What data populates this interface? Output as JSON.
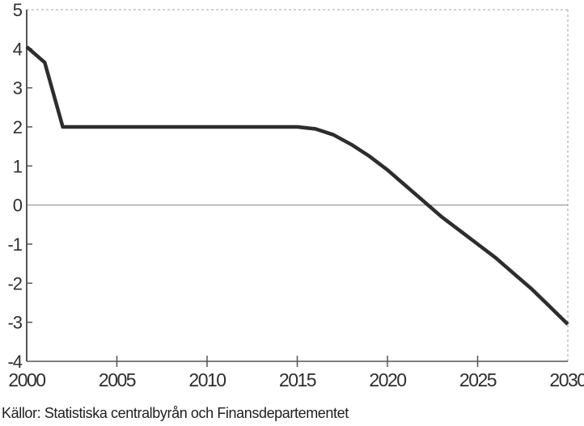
{
  "caption": "Källor: Statistiska centralbyrån och Finansdepartementet",
  "colors": {
    "background": "#ffffff",
    "line": "#2d2d2d",
    "axis": "#555555",
    "zero_line": "#909090",
    "border_dotted": "#b5b5b5",
    "text": "#2e2e2e"
  },
  "chart_data": {
    "type": "line",
    "title": "",
    "xlabel": "",
    "ylabel": "",
    "x": [
      2000,
      2001,
      2002,
      2003,
      2004,
      2005,
      2006,
      2007,
      2008,
      2009,
      2010,
      2011,
      2012,
      2013,
      2014,
      2015,
      2016,
      2017,
      2018,
      2019,
      2020,
      2021,
      2022,
      2023,
      2024,
      2025,
      2026,
      2027,
      2028,
      2029,
      2030
    ],
    "values": [
      4.05,
      3.65,
      2.0,
      2.0,
      2.0,
      2.0,
      2.0,
      2.0,
      2.0,
      2.0,
      2.0,
      2.0,
      2.0,
      2.0,
      2.0,
      2.0,
      1.95,
      1.8,
      1.55,
      1.25,
      0.9,
      0.5,
      0.1,
      -0.3,
      -0.65,
      -1.0,
      -1.35,
      -1.75,
      -2.15,
      -2.6,
      -3.05
    ],
    "xlim": [
      2000,
      2030
    ],
    "ylim": [
      -4,
      5
    ],
    "x_ticks": [
      2000,
      2005,
      2010,
      2015,
      2020,
      2025,
      2030
    ],
    "y_ticks": [
      5,
      4,
      3,
      2,
      1,
      0,
      -1,
      -2,
      -3,
      -4
    ],
    "grid": "horizontal line at zero only",
    "legend": "none",
    "source_note": "Källor: Statistiska centralbyrån och Finansdepartementet"
  }
}
